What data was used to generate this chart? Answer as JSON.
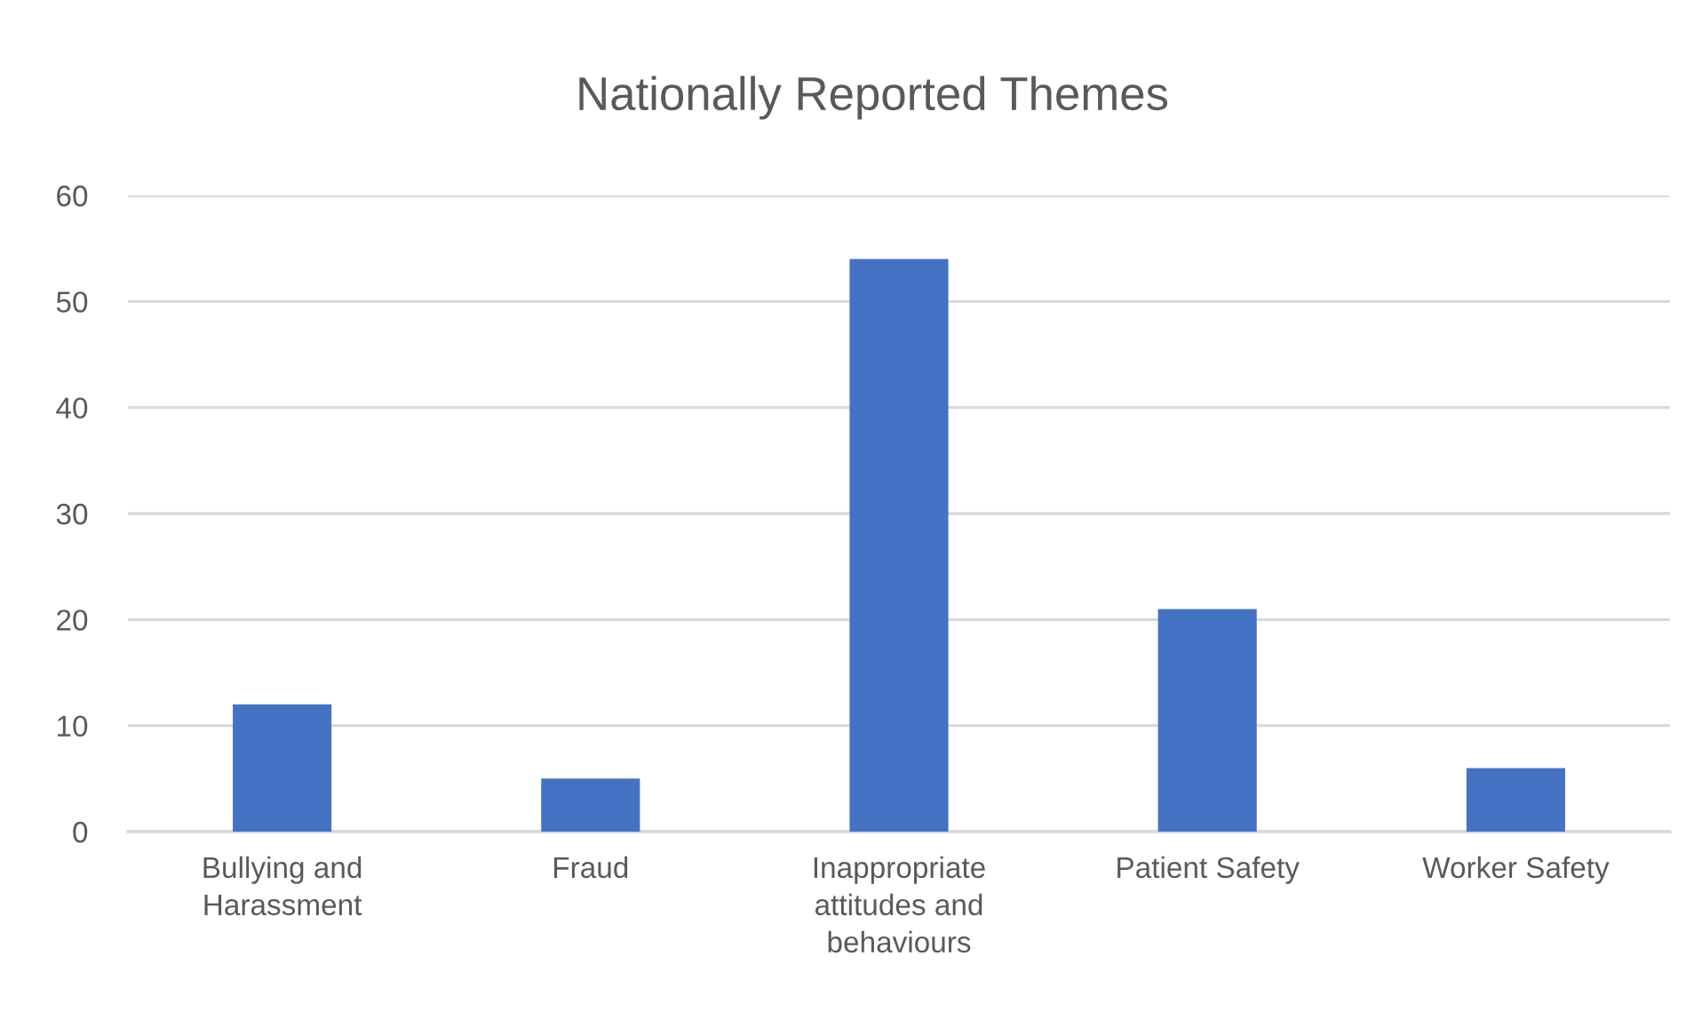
{
  "chart_data": {
    "type": "bar",
    "title": "Nationally Reported Themes",
    "categories": [
      "Bullying and\nHarassment",
      "Fraud",
      "Inappropriate\nattitudes and\nbehaviours",
      "Patient Safety",
      "Worker Safety"
    ],
    "values": [
      12,
      5,
      54,
      21,
      6
    ],
    "color": "#4472c4",
    "ylim": [
      0,
      60
    ],
    "yticks": [
      0,
      10,
      20,
      30,
      40,
      50,
      60
    ],
    "grid": "y"
  }
}
